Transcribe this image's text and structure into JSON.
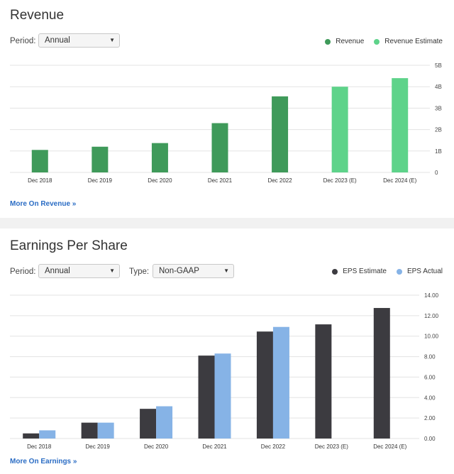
{
  "revenue": {
    "title": "Revenue",
    "period_label": "Period:",
    "period_value": "Annual",
    "legend": [
      {
        "label": "Revenue",
        "color": "#3f9a5a"
      },
      {
        "label": "Revenue Estimate",
        "color": "#5ed38a"
      }
    ],
    "more_link": "More On Revenue »"
  },
  "eps": {
    "title": "Earnings Per Share",
    "period_label": "Period:",
    "period_value": "Annual",
    "type_label": "Type:",
    "type_value": "Non-GAAP",
    "legend": [
      {
        "label": "EPS Estimate",
        "color": "#3c3b40"
      },
      {
        "label": "EPS Actual",
        "color": "#86b3e6"
      }
    ],
    "more_link": "More On Earnings »"
  },
  "chart_data": [
    {
      "type": "bar",
      "title": "Revenue",
      "categories": [
        "Dec 2018",
        "Dec 2019",
        "Dec 2020",
        "Dec 2021",
        "Dec 2022",
        "Dec 2023 (E)",
        "Dec 2024 (E)"
      ],
      "series": [
        {
          "name": "Revenue",
          "color": "#3f9a5a",
          "values": [
            1.05,
            1.2,
            1.37,
            2.3,
            3.55,
            null,
            null
          ]
        },
        {
          "name": "Revenue Estimate",
          "color": "#5ed38a",
          "values": [
            null,
            null,
            null,
            null,
            null,
            4.0,
            4.4
          ]
        }
      ],
      "yticks": [
        "0",
        "1B",
        "2B",
        "3B",
        "4B",
        "5B"
      ],
      "ylim": [
        0,
        5
      ],
      "grid": true
    },
    {
      "type": "bar",
      "title": "Earnings Per Share",
      "categories": [
        "Dec 2018",
        "Dec 2019",
        "Dec 2020",
        "Dec 2021",
        "Dec 2022",
        "Dec 2023 (E)",
        "Dec 2024 (E)"
      ],
      "series": [
        {
          "name": "EPS Estimate",
          "color": "#3c3b40",
          "values": [
            0.5,
            1.55,
            2.9,
            8.1,
            10.45,
            11.15,
            12.75
          ]
        },
        {
          "name": "EPS Actual",
          "color": "#86b3e6",
          "values": [
            0.8,
            1.55,
            3.15,
            8.3,
            10.9,
            null,
            null
          ]
        }
      ],
      "yticks": [
        "0.00",
        "2.00",
        "4.00",
        "6.00",
        "8.00",
        "10.00",
        "12.00",
        "14.00"
      ],
      "ylim": [
        0,
        14
      ],
      "grid": true
    }
  ]
}
